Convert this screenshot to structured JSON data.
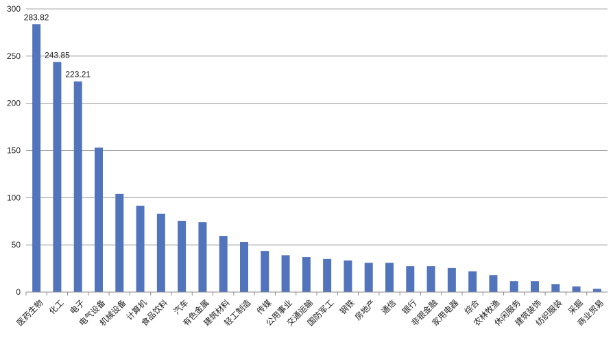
{
  "chart_data": {
    "type": "bar",
    "categories": [
      "医药生物",
      "化工",
      "电子",
      "电气设备",
      "机械设备",
      "计算机",
      "食品饮料",
      "汽车",
      "有色金属",
      "建筑材料",
      "轻工制造",
      "传媒",
      "公用事业",
      "交通运输",
      "国防军工",
      "钢铁",
      "房地产",
      "通信",
      "银行",
      "非银金融",
      "家用电器",
      "综合",
      "农林牧渔",
      "休闲服务",
      "建筑装饰",
      "纺织服装",
      "采掘",
      "商业贸易"
    ],
    "values": [
      283.82,
      243.85,
      223.21,
      153,
      104,
      91.5,
      83,
      75.5,
      74,
      59.5,
      53,
      43.5,
      39,
      37,
      35,
      33.5,
      31,
      31,
      27.5,
      27.5,
      25.5,
      22,
      18,
      11.5,
      11.5,
      8.5,
      6,
      3.5
    ],
    "value_labels": [
      "283.82",
      "243.85",
      "223.21",
      null,
      null,
      null,
      null,
      null,
      null,
      null,
      null,
      null,
      null,
      null,
      null,
      null,
      null,
      null,
      null,
      null,
      null,
      null,
      null,
      null,
      null,
      null,
      null,
      null
    ],
    "color": "#5274bd",
    "ylim": [
      0,
      300
    ],
    "yticks": [
      0,
      50,
      100,
      150,
      200,
      250,
      300
    ],
    "grid": true
  }
}
